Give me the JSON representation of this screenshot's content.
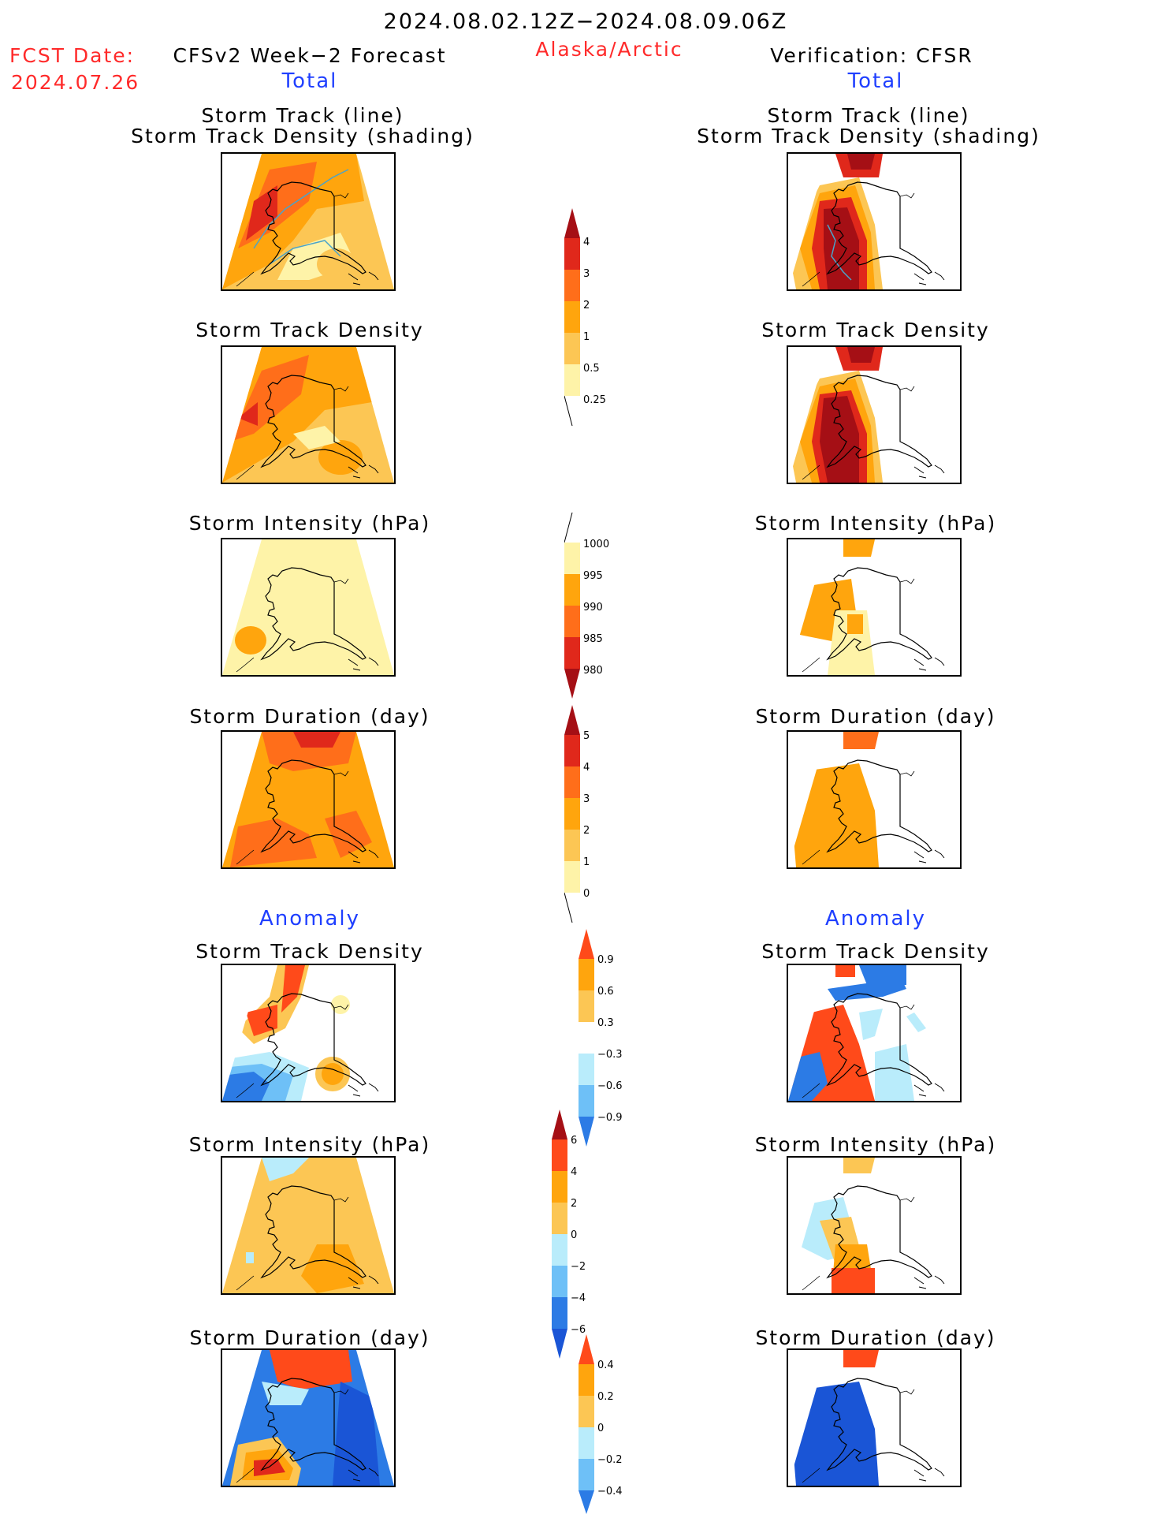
{
  "header": {
    "date_range": "2024.08.02.12Z−2024.08.09.06Z",
    "fcst_date_label": "FCST Date:",
    "fcst_date_value": "2024.07.26",
    "forecast_title": "CFSv2 Week−2 Forecast",
    "region": "Alaska/Arctic",
    "verification_title": "Verification: CFSR"
  },
  "sections": {
    "total_label": "Total",
    "anomaly_label": "Anomaly"
  },
  "panels": {
    "track_line_title": "Storm Track (line)",
    "track_shading_title": "Storm Track Density (shading)",
    "track_density": "Storm Track Density",
    "intensity": "Storm Intensity (hPa)",
    "duration": "Storm Duration (day)"
  },
  "colorbars": {
    "track_density_total": [
      "4",
      "3",
      "2",
      "1",
      "0.5",
      "0.25"
    ],
    "intensity_total": [
      "1000",
      "995",
      "990",
      "985",
      "980"
    ],
    "duration_total": [
      "5",
      "4",
      "3",
      "2",
      "1",
      "0"
    ],
    "track_density_anom": [
      "0.9",
      "0.6",
      "0.3",
      "−0.3",
      "−0.6",
      "−0.9"
    ],
    "intensity_anom": [
      "6",
      "4",
      "2",
      "0",
      "−2",
      "−4",
      "−6"
    ],
    "duration_anom": [
      "0.4",
      "0.2",
      "0",
      "−0.2",
      "−0.4"
    ]
  },
  "colors": {
    "dark_red": "#a50f15",
    "red": "#e0281b",
    "red_orange": "#ff4a1a",
    "orange_dark": "#ff6e1a",
    "orange": "#ffa50d",
    "light_orange": "#fcc654",
    "pale_yellow": "#fef3a8",
    "light_blue": "#b9ecfb",
    "mid_blue": "#6ec0f7",
    "blue": "#2c7be5",
    "dark_blue": "#1a55d6",
    "track_line": "#4aa3c9"
  }
}
